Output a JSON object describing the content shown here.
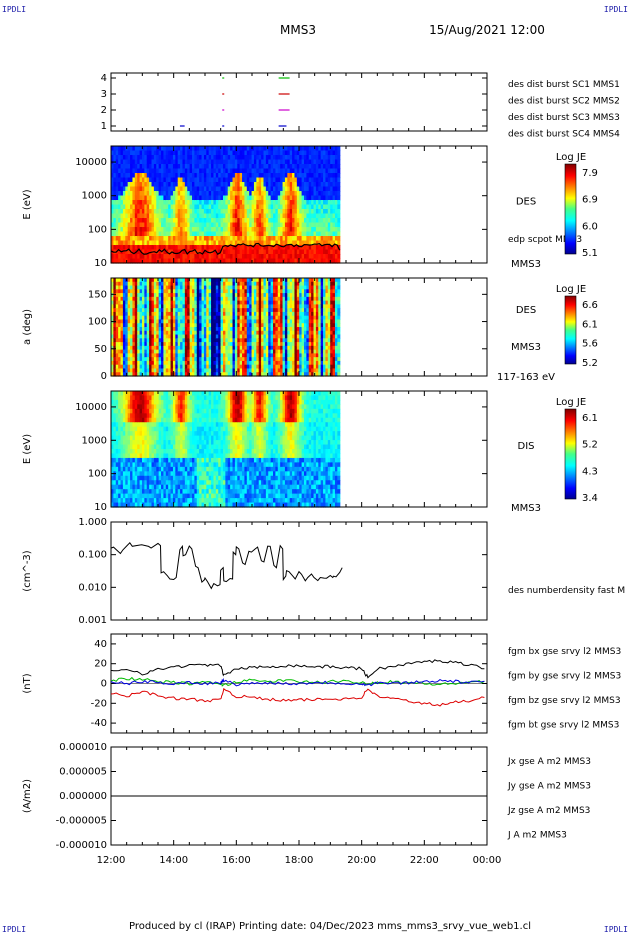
{
  "header": {
    "corner_tl": "IPDLI",
    "corner_tr": "IPDLI",
    "corner_bl": "IPDLI",
    "corner_br": "IPDLI",
    "spacecraft": "MMS3",
    "datetime": "15/Aug/2021 12:00"
  },
  "footer": {
    "text": "Produced by cl (IRAP)   Printing date: 04/Dec/2023   mms_mms3_srvy_vue_web1.cl"
  },
  "time_axis": {
    "ticks": [
      "12:00",
      "14:00",
      "16:00",
      "18:00",
      "20:00",
      "22:00",
      "00:00"
    ]
  },
  "chart_data": [
    {
      "type": "scatter",
      "name": "burst-availability",
      "y_ticks": [
        "1",
        "2",
        "3",
        "4"
      ],
      "legend": [
        {
          "label": "des dist burst SC1 MMS1",
          "color": "#0000cc"
        },
        {
          "label": "des dist burst SC2 MMS2",
          "color": "#cc00cc"
        },
        {
          "label": "des dist burst SC3 MMS3",
          "color": "#cc0000"
        },
        {
          "label": "des dist burst SC4 MMS4",
          "color": "#00bb00"
        }
      ],
      "segments": [
        {
          "level": 1,
          "color": "#0000cc",
          "t": [
            [
              2.2,
              2.35
            ],
            [
              3.55,
              3.6
            ],
            [
              5.35,
              5.6
            ]
          ]
        },
        {
          "level": 2,
          "color": "#cc00cc",
          "t": [
            [
              3.55,
              3.6
            ],
            [
              5.35,
              5.7
            ]
          ]
        },
        {
          "level": 3,
          "color": "#cc0000",
          "t": [
            [
              3.55,
              3.6
            ],
            [
              5.35,
              5.7
            ]
          ]
        },
        {
          "level": 4,
          "color": "#00bb00",
          "t": [
            [
              3.55,
              3.6
            ],
            [
              5.35,
              5.7
            ]
          ]
        }
      ]
    },
    {
      "type": "heatmap",
      "name": "des-energy",
      "ylabel": "E (eV)",
      "y_scale": "log",
      "y_range": [
        10,
        30000
      ],
      "y_ticks": [
        "10",
        "100",
        "1000",
        "10000"
      ],
      "data_end_hour": 7.3,
      "species": "DES",
      "sc_label": "MMS3",
      "overlay_label": "edp scpot MMS3",
      "colorbar": {
        "title": "Log JE",
        "ticks": [
          "7.9",
          "6.9",
          "6.0",
          "5.1"
        ]
      }
    },
    {
      "type": "heatmap",
      "name": "des-pitch",
      "ylabel": "a (deg)",
      "y_range": [
        0,
        180
      ],
      "y_ticks": [
        "0",
        "50",
        "100",
        "150"
      ],
      "data_end_hour": 7.3,
      "species": "DES",
      "sc_label": "MMS3",
      "energy_label": "117-163 eV",
      "colorbar": {
        "title": "Log JE",
        "ticks": [
          "6.6",
          "6.1",
          "5.6",
          "5.2"
        ]
      }
    },
    {
      "type": "heatmap",
      "name": "dis-energy",
      "ylabel": "E (eV)",
      "y_scale": "log",
      "y_range": [
        10,
        30000
      ],
      "y_ticks": [
        "10",
        "100",
        "1000",
        "10000"
      ],
      "data_end_hour": 7.3,
      "species": "DIS",
      "sc_label": "MMS3",
      "colorbar": {
        "title": "Log JE",
        "ticks": [
          "6.1",
          "5.2",
          "4.3",
          "3.4"
        ]
      }
    },
    {
      "type": "line",
      "name": "density",
      "ylabel": "(cm^-3)",
      "y_scale": "log",
      "y_range": [
        0.001,
        1.0
      ],
      "y_ticks": [
        "1.000",
        "0.100",
        "0.010",
        "0.001"
      ],
      "series": [
        {
          "name": "des numberdensity fast M",
          "color": "#000000",
          "x": [
            0,
            0.3,
            0.6,
            0.9,
            1.2,
            1.5,
            1.6,
            1.8,
            2.0,
            2.2,
            2.3,
            2.5,
            2.7,
            2.9,
            3.0,
            3.2,
            3.4,
            3.5,
            3.6,
            3.8,
            3.9,
            4.0,
            4.2,
            4.4,
            4.6,
            4.8,
            5.0,
            5.2,
            5.4,
            5.5,
            5.6,
            5.8,
            6.0,
            6.2,
            6.4,
            6.6,
            6.8,
            7.0,
            7.1,
            7.3
          ],
          "y": [
            0.17,
            0.14,
            0.18,
            0.2,
            0.16,
            0.19,
            0.03,
            0.018,
            0.02,
            0.18,
            0.1,
            0.15,
            0.04,
            0.017,
            0.015,
            0.013,
            0.012,
            0.04,
            0.015,
            0.018,
            0.1,
            0.15,
            0.05,
            0.12,
            0.17,
            0.06,
            0.18,
            0.04,
            0.15,
            0.022,
            0.03,
            0.018,
            0.025,
            0.02,
            0.02,
            0.02,
            0.019,
            0.02,
            0.021,
            0.04
          ]
        }
      ]
    },
    {
      "type": "line",
      "name": "magnetic-field",
      "ylabel": "(nT)",
      "y_range": [
        -50,
        50
      ],
      "y_ticks": [
        "40",
        "20",
        "0",
        "-20",
        "-40"
      ],
      "x": [
        0,
        0.5,
        1,
        1.5,
        2,
        2.5,
        3,
        3.5,
        3.6,
        4,
        4.5,
        5,
        5.5,
        6,
        6.5,
        7,
        7.5,
        8,
        8.2,
        8.5,
        9,
        9.5,
        10,
        10.5,
        11,
        11.5,
        12
      ],
      "series": [
        {
          "name": "fgm bx gse srvy l2 MMS3",
          "color": "#dd0000",
          "y": [
            -10,
            -13,
            -8,
            -12,
            -15,
            -16,
            -17,
            -17,
            -5,
            -13,
            -14,
            -16,
            -17,
            -17,
            -16,
            -16,
            -15,
            -14,
            -5,
            -13,
            -15,
            -18,
            -20,
            -22,
            -19,
            -17,
            -12
          ]
        },
        {
          "name": "fgm by gse srvy l2 MMS3",
          "color": "#00bb00",
          "y": [
            3,
            5,
            4,
            2,
            1,
            0,
            1,
            0,
            -2,
            2,
            3,
            2,
            3,
            2,
            1,
            2,
            2,
            1,
            0,
            1,
            2,
            1,
            0,
            -1,
            0,
            2,
            1
          ]
        },
        {
          "name": "fgm bz gse srvy l2 MMS3",
          "color": "#0000dd",
          "y": [
            1,
            0,
            2,
            1,
            0,
            1,
            0,
            1,
            3,
            -1,
            0,
            1,
            0,
            0,
            1,
            1,
            0,
            0,
            -2,
            1,
            0,
            1,
            2,
            3,
            2,
            1,
            2
          ]
        },
        {
          "name": "fgm bt gse srvy l2 MMS3",
          "color": "#000000",
          "y": [
            12,
            15,
            10,
            14,
            17,
            18,
            19,
            18,
            8,
            15,
            16,
            17,
            18,
            18,
            17,
            17,
            16,
            15,
            6,
            15,
            17,
            20,
            22,
            23,
            21,
            19,
            15
          ]
        }
      ]
    },
    {
      "type": "line",
      "name": "current-density",
      "ylabel": "(A/m2)",
      "y_range": [
        -1e-05,
        1e-05
      ],
      "y_ticks": [
        "0.000010",
        "0.000005",
        "0.000000",
        "-0.000005",
        "-0.000010"
      ],
      "legend": [
        {
          "label": "Jx gse A m2 MMS3",
          "color": "#dd0000"
        },
        {
          "label": "Jy gse A m2 MMS3",
          "color": "#00bb00"
        },
        {
          "label": "Jz gse A m2 MMS3",
          "color": "#0000dd"
        },
        {
          "label": "J A m2 MMS3",
          "color": "#000000"
        }
      ],
      "series": [
        {
          "name": "J A m2 MMS3",
          "color": "#000000",
          "x": [
            0,
            12
          ],
          "y": [
            0,
            0
          ]
        }
      ]
    }
  ]
}
